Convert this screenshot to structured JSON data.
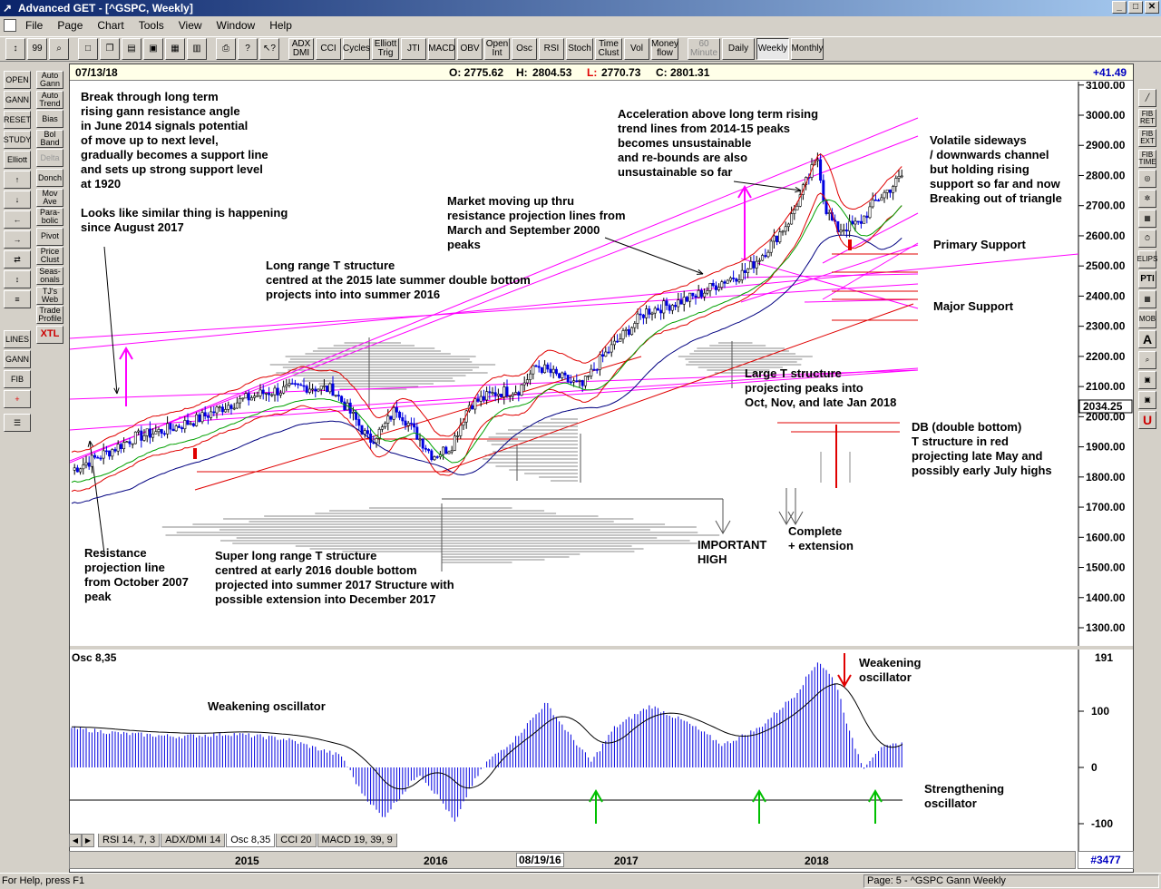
{
  "window": {
    "title": "Advanced GET - [^GSPC, Weekly]"
  },
  "menu": [
    "File",
    "Page",
    "Chart",
    "Tools",
    "View",
    "Window",
    "Help"
  ],
  "toolbar": {
    "left_tools": [
      "↕",
      "99",
      "⌕"
    ],
    "indicators": [
      "ADX DMI",
      "CCI",
      "Cycles",
      "Elliott Trig",
      "JTI",
      "MACD",
      "OBV",
      "Open Int",
      "Osc",
      "RSI",
      "Stoch",
      "Time Clust",
      "Vol",
      "Money flow"
    ],
    "timeframes": [
      "60 Minute",
      "Daily",
      "Weekly",
      "Monthly"
    ],
    "selected_timeframe": "Weekly"
  },
  "left_panel": {
    "col1": [
      "OPEN",
      "GANN",
      "RESET",
      "STUDY",
      "Elliott",
      "↑",
      "↓",
      "←",
      "→",
      "⇄",
      "↕",
      "≡",
      "LINES",
      "GANN",
      "FIB",
      "+",
      "☰"
    ],
    "col2": [
      "Auto Gann",
      "Auto Trend",
      "Bias",
      "Bol Band",
      "Delta",
      "Donch",
      "Mov Ave",
      "Para-bolic",
      "Pivot",
      "Price Clust",
      "Seas-onals",
      "TJ's Web",
      "Trade Profile",
      "XTL"
    ]
  },
  "right_panel": [
    "╱",
    "FIB RET",
    "FIB EXT",
    "FIB TIME",
    "◎",
    "✲",
    "▦",
    "⏱",
    "ELIPS",
    "PTI",
    "▦",
    "MOB",
    "A",
    "⌕",
    "▣",
    "▣",
    "U"
  ],
  "info": {
    "date": "07/13/18",
    "open": "O: 2775.62",
    "high_label": "H:",
    "high": "2804.53",
    "low_label": "L:",
    "low": "2770.73",
    "close": "C: 2801.31",
    "change": "+41.49"
  },
  "price_axis": {
    "ticks": [
      "3100.00",
      "3000.00",
      "2900.00",
      "2800.00",
      "2700.00",
      "2600.00",
      "2500.00",
      "2400.00",
      "2300.00",
      "2200.00",
      "2100.00",
      "2000.00",
      "1900.00",
      "1800.00",
      "1700.00",
      "1600.00",
      "1500.00",
      "1400.00",
      "1300.00"
    ],
    "current": "2034.25"
  },
  "annotations": {
    "a1": "Break through long term\nrising gann resistance angle\nin June 2014 signals potential\nof move up to next level,\ngradually becomes a support line\nand sets up strong support level\nat 1920",
    "a2": "Looks like similar thing is happening\nsince August 2017",
    "a3": "Long range T structure\ncentred at the 2015 late summer double bottom\nprojects into into summer 2016",
    "a4": "Market moving up thru\nresistance projection lines from\nMarch and September 2000\npeaks",
    "a5": "Acceleration above long term rising\ntrend lines from 2014-15 peaks\nbecomes unsustainable\nand re-bounds are also\nunsustainable so far",
    "a6": "Volatile sideways\n/ downwards channel\nbut holding rising\nsupport so far and now\nBreaking out of triangle",
    "a7": "Primary Support",
    "a8": "Major Support",
    "a9": "Large T structure\nprojecting peaks into\nOct, Nov, and late Jan 2018",
    "a10": "DB (double bottom)\nT structure in red\nprojecting late May and\npossibly early July highs",
    "a11": "Complete\n+ extension",
    "a12": "IMPORTANT\nHIGH",
    "a13": "Super long range T structure\ncentred at early 2016 double bottom\nprojected into summer 2017 Structure with\npossible extension into December 2017",
    "a14": "Resistance\nprojection line\nfrom October 2007\npeak"
  },
  "oscillator": {
    "label": "Osc 8,35",
    "value": "191",
    "ticks": [
      "100",
      "0",
      "-100"
    ],
    "annot_weak1": "Weakening oscillator",
    "annot_weak2": "Weakening\noscillator",
    "annot_strong": "Strengthening\noscillator"
  },
  "tabs": [
    "RSI 14, 7, 3",
    "ADX/DMI 14",
    "Osc 8,35",
    "CCI 20",
    "MACD 19, 39, 9"
  ],
  "active_tab": "Osc 8,35",
  "date_axis": {
    "labels": [
      "2015",
      "2016",
      "08/19/16",
      "2017",
      "2018"
    ],
    "bars": "#3477"
  },
  "status": {
    "left": "For Help, press F1",
    "right": "Page: 5 - ^GSPC Gann Weekly"
  },
  "colors": {
    "magenta": "#ff00ff",
    "red": "#e00000",
    "blue": "#0000e0",
    "green": "#00a000",
    "navy": "#000080"
  }
}
